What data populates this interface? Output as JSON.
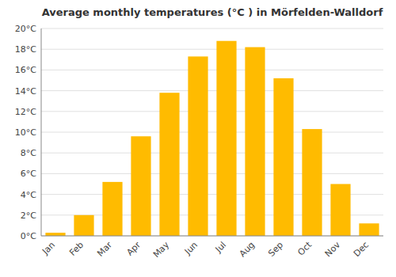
{
  "chart_data": {
    "type": "bar",
    "title": "Average monthly temperatures (°C ) in Mörfelden-Walldorf",
    "categories": [
      "Jan",
      "Feb",
      "Mar",
      "Apr",
      "May",
      "Jun",
      "Jul",
      "Aug",
      "Sep",
      "Oct",
      "Nov",
      "Dec"
    ],
    "values": [
      0.3,
      2.0,
      5.2,
      9.6,
      13.8,
      17.3,
      18.8,
      18.2,
      15.2,
      10.3,
      5.0,
      1.2
    ],
    "color": "#FFBB00",
    "ylim": [
      0,
      20
    ],
    "yticks": [
      {
        "value": 0,
        "label": "0°C"
      },
      {
        "value": 2,
        "label": "2°C"
      },
      {
        "value": 4,
        "label": "4°C"
      },
      {
        "value": 6,
        "label": "6°C"
      },
      {
        "value": 8,
        "label": "8°C"
      },
      {
        "value": 10,
        "label": "10°C"
      },
      {
        "value": 12,
        "label": "12°C"
      },
      {
        "value": 14,
        "label": "14°C"
      },
      {
        "value": 16,
        "label": "16°C"
      },
      {
        "value": 18,
        "label": "18°C"
      },
      {
        "value": 20,
        "label": "20°C"
      }
    ],
    "grid": true
  }
}
